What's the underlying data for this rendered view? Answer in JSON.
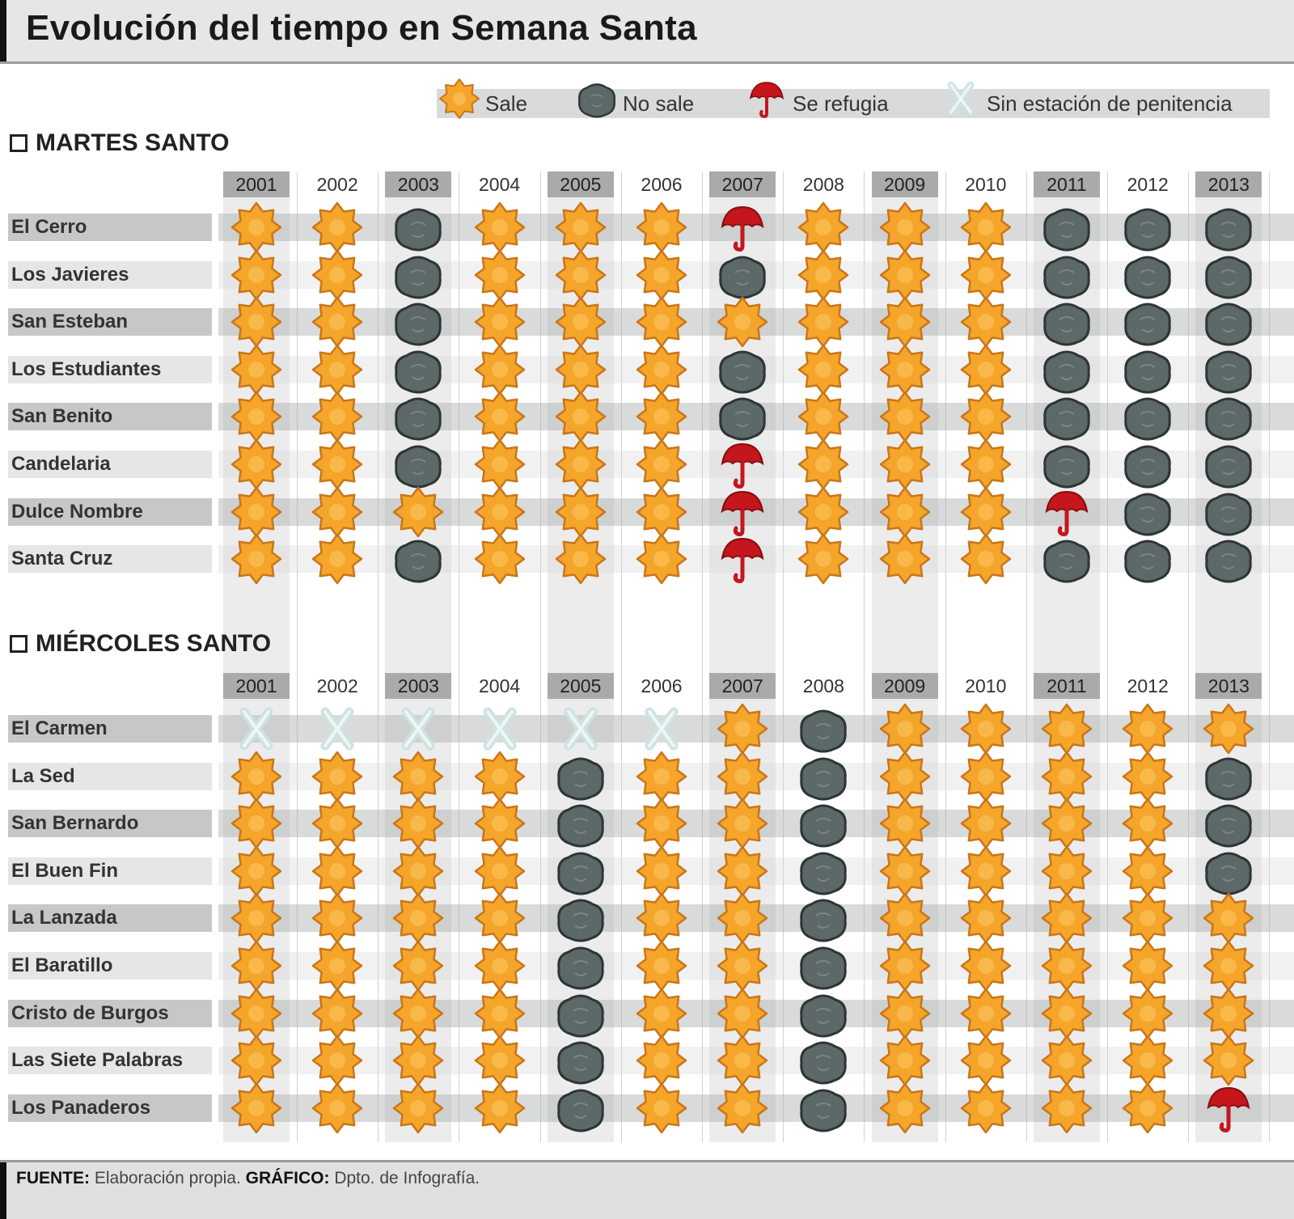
{
  "title": "Evolución del tiempo en Semana Santa",
  "legend": [
    {
      "code": "S",
      "label": "Sale",
      "icon": "sun-icon",
      "color": "#f5a52a"
    },
    {
      "code": "N",
      "label": "No sale",
      "icon": "cloud-icon",
      "color": "#5d6868"
    },
    {
      "code": "R",
      "label": "Se refugia",
      "icon": "umbrella-icon",
      "color": "#c4161c"
    },
    {
      "code": "X",
      "label": "Sin estación de penitencia",
      "icon": "cross-icon",
      "color": "#cfe2e2"
    }
  ],
  "chart_data": {
    "type": "table",
    "title": "Evolución del tiempo en Semana Santa",
    "sections": [
      {
        "title": "MARTES SANTO",
        "years": [
          "2001",
          "2002",
          "2003",
          "2004",
          "2005",
          "2006",
          "2007",
          "2008",
          "2009",
          "2010",
          "2011",
          "2012",
          "2013"
        ],
        "rows": [
          {
            "name": "El Cerro",
            "values": [
              "S",
              "S",
              "N",
              "S",
              "S",
              "S",
              "R",
              "S",
              "S",
              "S",
              "N",
              "N",
              "N"
            ]
          },
          {
            "name": "Los Javieres",
            "values": [
              "S",
              "S",
              "N",
              "S",
              "S",
              "S",
              "N",
              "S",
              "S",
              "S",
              "N",
              "N",
              "N"
            ]
          },
          {
            "name": "San Esteban",
            "values": [
              "S",
              "S",
              "N",
              "S",
              "S",
              "S",
              "S",
              "S",
              "S",
              "S",
              "N",
              "N",
              "N"
            ]
          },
          {
            "name": "Los Estudiantes",
            "values": [
              "S",
              "S",
              "N",
              "S",
              "S",
              "S",
              "N",
              "S",
              "S",
              "S",
              "N",
              "N",
              "N"
            ]
          },
          {
            "name": "San Benito",
            "values": [
              "S",
              "S",
              "N",
              "S",
              "S",
              "S",
              "N",
              "S",
              "S",
              "S",
              "N",
              "N",
              "N"
            ]
          },
          {
            "name": "Candelaria",
            "values": [
              "S",
              "S",
              "N",
              "S",
              "S",
              "S",
              "R",
              "S",
              "S",
              "S",
              "N",
              "N",
              "N"
            ]
          },
          {
            "name": "Dulce Nombre",
            "values": [
              "S",
              "S",
              "S",
              "S",
              "S",
              "S",
              "R",
              "S",
              "S",
              "S",
              "R",
              "N",
              "N"
            ]
          },
          {
            "name": "Santa Cruz",
            "values": [
              "S",
              "S",
              "N",
              "S",
              "S",
              "S",
              "R",
              "S",
              "S",
              "S",
              "N",
              "N",
              "N"
            ]
          }
        ]
      },
      {
        "title": "MIÉRCOLES SANTO",
        "years": [
          "2001",
          "2002",
          "2003",
          "2004",
          "2005",
          "2006",
          "2007",
          "2008",
          "2009",
          "2010",
          "2011",
          "2012",
          "2013"
        ],
        "rows": [
          {
            "name": "El Carmen",
            "values": [
              "X",
              "X",
              "X",
              "X",
              "X",
              "X",
              "S",
              "N",
              "S",
              "S",
              "S",
              "S",
              "S"
            ]
          },
          {
            "name": "La Sed",
            "values": [
              "S",
              "S",
              "S",
              "S",
              "N",
              "S",
              "S",
              "N",
              "S",
              "S",
              "S",
              "S",
              "N"
            ]
          },
          {
            "name": "San Bernardo",
            "values": [
              "S",
              "S",
              "S",
              "S",
              "N",
              "S",
              "S",
              "N",
              "S",
              "S",
              "S",
              "S",
              "N"
            ]
          },
          {
            "name": "El Buen Fin",
            "values": [
              "S",
              "S",
              "S",
              "S",
              "N",
              "S",
              "S",
              "N",
              "S",
              "S",
              "S",
              "S",
              "N"
            ]
          },
          {
            "name": "La Lanzada",
            "values": [
              "S",
              "S",
              "S",
              "S",
              "N",
              "S",
              "S",
              "N",
              "S",
              "S",
              "S",
              "S",
              "S"
            ]
          },
          {
            "name": "El Baratillo",
            "values": [
              "S",
              "S",
              "S",
              "S",
              "N",
              "S",
              "S",
              "N",
              "S",
              "S",
              "S",
              "S",
              "S"
            ]
          },
          {
            "name": "Cristo de Burgos",
            "values": [
              "S",
              "S",
              "S",
              "S",
              "N",
              "S",
              "S",
              "N",
              "S",
              "S",
              "S",
              "S",
              "S"
            ]
          },
          {
            "name": "Las Siete Palabras",
            "values": [
              "S",
              "S",
              "S",
              "S",
              "N",
              "S",
              "S",
              "N",
              "S",
              "S",
              "S",
              "S",
              "S"
            ]
          },
          {
            "name": "Los Panaderos",
            "values": [
              "S",
              "S",
              "S",
              "S",
              "N",
              "S",
              "S",
              "N",
              "S",
              "S",
              "S",
              "S",
              "R"
            ]
          }
        ]
      }
    ]
  },
  "footer": {
    "source_label": "FUENTE:",
    "source_value": "Elaboración propia.",
    "graphic_label": "GRÁFICO:",
    "graphic_value": "Dpto. de Infografía."
  }
}
